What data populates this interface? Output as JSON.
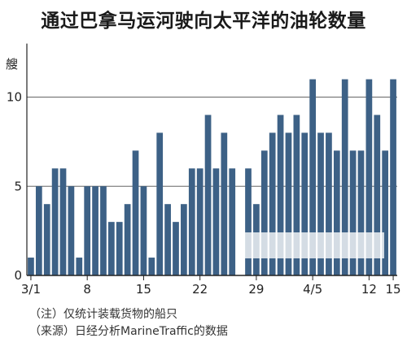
{
  "title": "通过巴拿马运河驶向太平洋的油轮数量",
  "notes": {
    "note": "（注）仅统计装载货物的船只",
    "source": "（来源）日经分析MarineTraffic的数据"
  },
  "watermark": "日經中文网",
  "colors": {
    "bar": "#3d6186",
    "axis": "#222222",
    "grid": "#666666"
  },
  "chart_data": {
    "type": "bar",
    "title": "通过巴拿马运河驶向太平洋的油轮数量",
    "ylabel": "艘",
    "xlabel": "",
    "ylim": [
      0,
      13
    ],
    "yticks": [
      0,
      5,
      10
    ],
    "grid": "horizontal",
    "x_tick_labels": [
      {
        "index": 0,
        "label": "3/1"
      },
      {
        "index": 7,
        "label": "8"
      },
      {
        "index": 14,
        "label": "15"
      },
      {
        "index": 21,
        "label": "22"
      },
      {
        "index": 28,
        "label": "29"
      },
      {
        "index": 35,
        "label": "4/5"
      },
      {
        "index": 42,
        "label": "12"
      },
      {
        "index": 45,
        "label": "15"
      }
    ],
    "categories": [
      "3/1",
      "3/2",
      "3/3",
      "3/4",
      "3/5",
      "3/6",
      "3/7",
      "3/8",
      "3/9",
      "3/10",
      "3/11",
      "3/12",
      "3/13",
      "3/14",
      "3/15",
      "3/16",
      "3/17",
      "3/18",
      "3/19",
      "3/20",
      "3/21",
      "3/22",
      "3/23",
      "3/24",
      "3/25",
      "3/26",
      "3/27",
      "3/28",
      "3/29",
      "3/30",
      "3/31",
      "4/1",
      "4/2",
      "4/3",
      "4/4",
      "4/5",
      "4/6",
      "4/7",
      "4/8",
      "4/9",
      "4/10",
      "4/11",
      "4/12",
      "4/13",
      "4/14",
      "4/15"
    ],
    "values": [
      1,
      5,
      4,
      6,
      6,
      5,
      1,
      5,
      5,
      5,
      3,
      3,
      4,
      7,
      5,
      1,
      8,
      4,
      3,
      4,
      6,
      6,
      9,
      6,
      8,
      6,
      0,
      6,
      4,
      7,
      8,
      9,
      8,
      9,
      8,
      11,
      8,
      8,
      7,
      11,
      7,
      7,
      11,
      9,
      7,
      11
    ]
  }
}
